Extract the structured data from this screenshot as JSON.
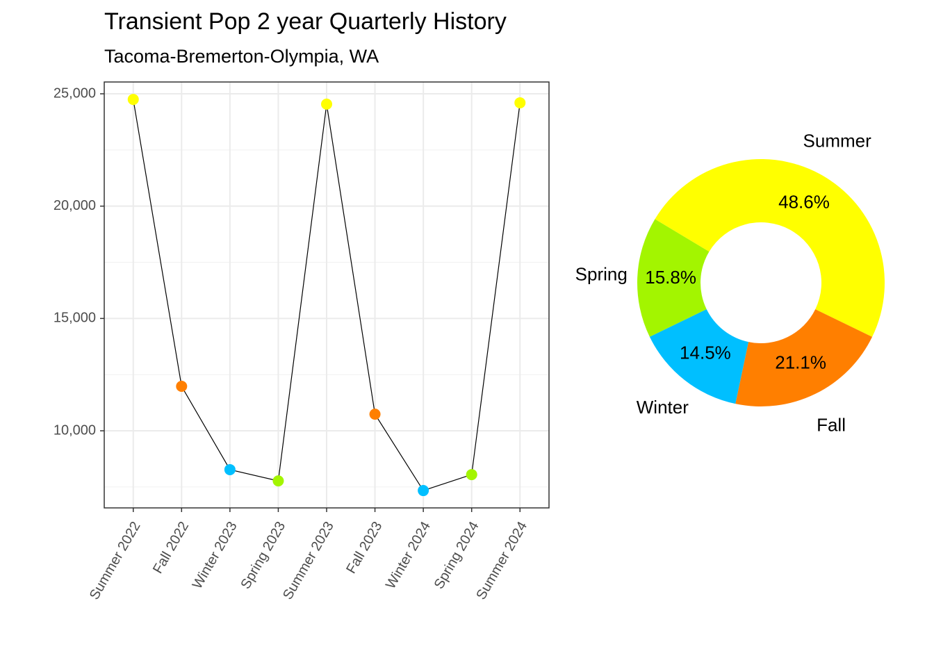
{
  "chart_data": [
    {
      "type": "line",
      "title": "Transient Pop 2 year Quarterly History",
      "subtitle": "Tacoma-Bremerton-Olympia, WA",
      "categories": [
        "Summer 2022",
        "Fall 2022",
        "Winter 2023",
        "Spring 2023",
        "Summer 2023",
        "Fall 2023",
        "Winter 2024",
        "Spring 2024",
        "Summer 2024"
      ],
      "values": [
        24750,
        11980,
        8270,
        7770,
        24540,
        10740,
        7340,
        8050,
        24600
      ],
      "point_colors": [
        "#ffff00",
        "#ff7f00",
        "#00bfff",
        "#a3f500",
        "#ffff00",
        "#ff7f00",
        "#00bfff",
        "#a3f500",
        "#ffff00"
      ],
      "line_color": "#000000",
      "ylim": [
        6568,
        25526
      ],
      "yticks": [
        {
          "value": 10000,
          "label": "10,000"
        },
        {
          "value": 15000,
          "label": "15,000"
        },
        {
          "value": 20000,
          "label": "20,000"
        },
        {
          "value": 25000,
          "label": "25,000"
        }
      ],
      "yminor": [
        7500,
        12500,
        17500,
        22500
      ],
      "grid": true
    },
    {
      "type": "donut",
      "categories": [
        "Summer",
        "Fall",
        "Winter",
        "Spring"
      ],
      "values": [
        48.6,
        21.1,
        14.5,
        15.8
      ],
      "value_labels": [
        "48.6%",
        "21.1%",
        "14.5%",
        "15.8%"
      ],
      "colors": [
        "#ffff00",
        "#ff7f00",
        "#00bfff",
        "#a3f500"
      ]
    }
  ]
}
